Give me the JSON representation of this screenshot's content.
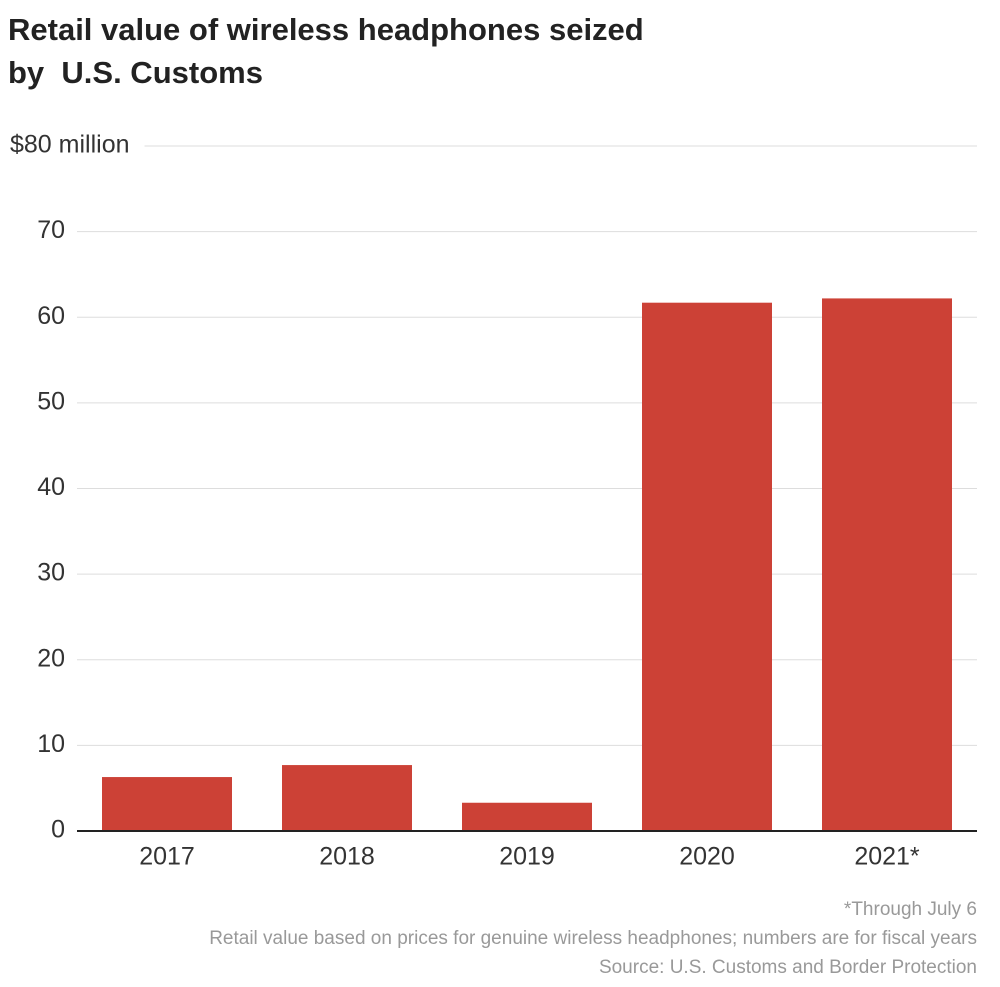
{
  "chart_data": {
    "type": "bar",
    "title": [
      "Retail value of wireless headphones seized",
      "by  U.S. Customs"
    ],
    "categories": [
      "2017",
      "2018",
      "2019",
      "2020",
      "2021*"
    ],
    "values": [
      6.3,
      7.7,
      3.3,
      61.7,
      62.2
    ],
    "color": "#cc4136",
    "ylim": [
      0,
      80
    ],
    "yticks": [
      0,
      10,
      20,
      30,
      40,
      50,
      60,
      70,
      {
        "value": 80,
        "label": "$80 million"
      }
    ],
    "grid": true,
    "notes": [
      "*Through July 6",
      "Retail value based on prices for genuine wireless headphones; numbers are for fiscal years",
      "Source: U.S. Customs and Border Protection"
    ]
  }
}
